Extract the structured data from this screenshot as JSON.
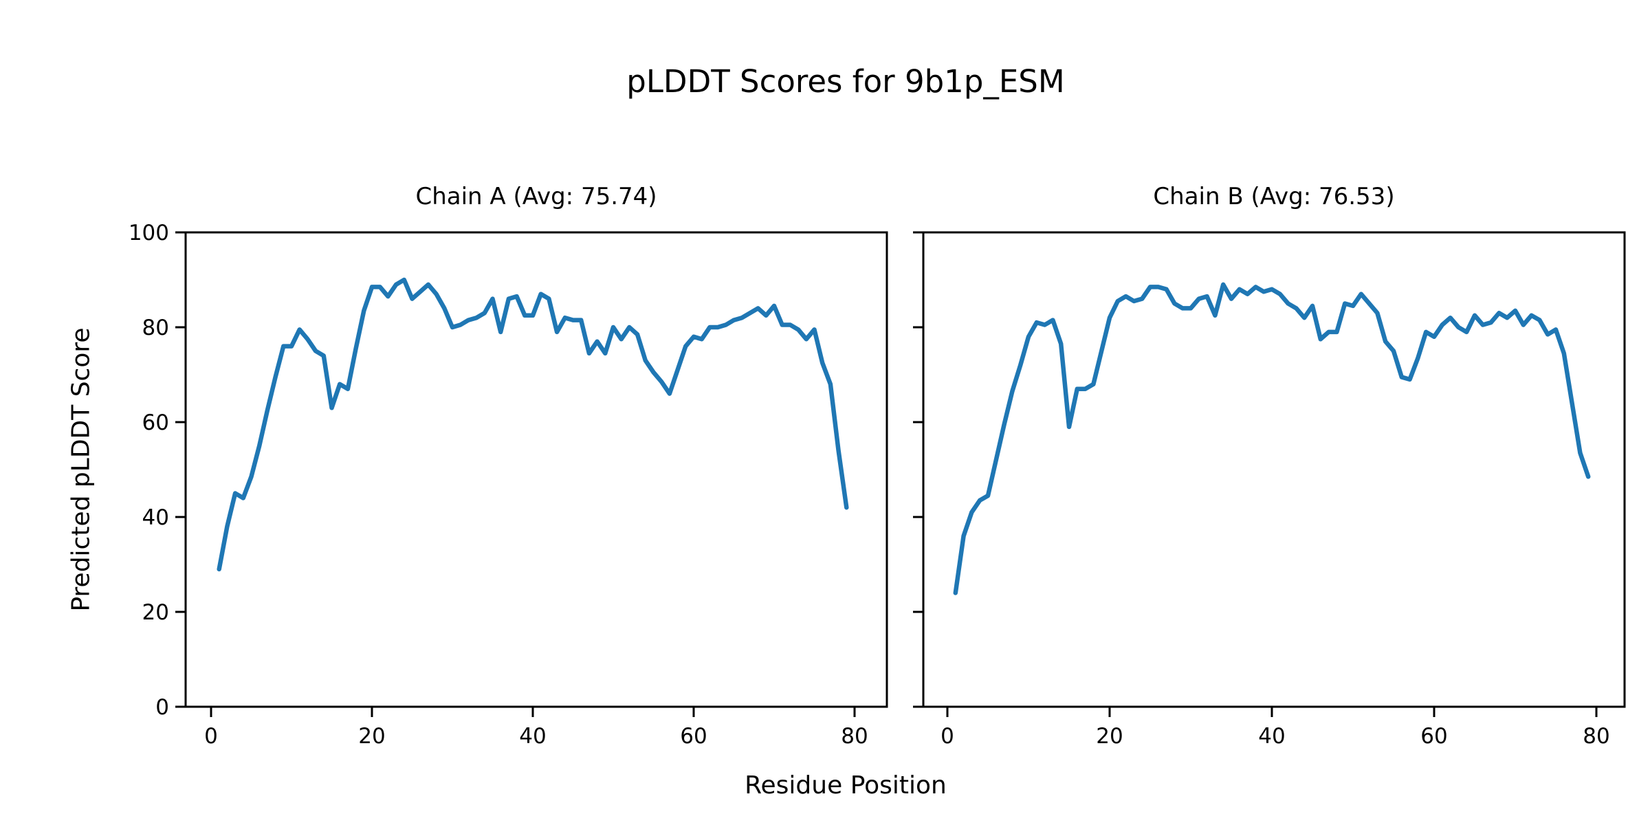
{
  "figure": {
    "title": "pLDDT Scores for 9b1p_ESM",
    "xlabel": "Residue Position",
    "ylabel": "Predicted pLDDT Score",
    "line_color": "#1f77b4",
    "background_color": "#ffffff",
    "text_color": "#000000"
  },
  "chart_data": [
    {
      "type": "line",
      "title": "Chain A (Avg: 75.74)",
      "chain": "A",
      "average": 75.74,
      "x_start": 1,
      "xticks": [
        0,
        20,
        40,
        60,
        80
      ],
      "yticks": [
        0,
        20,
        40,
        60,
        80,
        100
      ],
      "ylim": [
        0,
        100
      ],
      "xlim": [
        -2.9,
        82.9
      ],
      "grid": false,
      "yticklabels_visible": true,
      "values": [
        29,
        38,
        45,
        44,
        48.5,
        55,
        62.5,
        69.5,
        76,
        76,
        79.5,
        77.5,
        75,
        74,
        63,
        68,
        67,
        75.5,
        83.5,
        88.5,
        88.5,
        86.5,
        89,
        90,
        86,
        87.5,
        89,
        87,
        84,
        80,
        80.5,
        81.5,
        82,
        83,
        86,
        79,
        86,
        86.5,
        82.5,
        82.5,
        87,
        86,
        79,
        82,
        81.5,
        81.5,
        74.5,
        77,
        74.5,
        80,
        77.5,
        80,
        78.5,
        73,
        70.5,
        68.5,
        66,
        71,
        76,
        78,
        77.5,
        80,
        80,
        80.5,
        81.5,
        82,
        83,
        84,
        82.5,
        84.5,
        80.5,
        80.5,
        79.5,
        77.5,
        79.5,
        72.5,
        68,
        54,
        42
      ]
    },
    {
      "type": "line",
      "title": "Chain B (Avg: 76.53)",
      "chain": "B",
      "average": 76.53,
      "x_start": 1,
      "xticks": [
        0,
        20,
        40,
        60,
        80
      ],
      "yticks": [
        0,
        20,
        40,
        60,
        80,
        100
      ],
      "ylim": [
        0,
        100
      ],
      "xlim": [
        -2.9,
        82.9
      ],
      "grid": false,
      "yticklabels_visible": false,
      "values": [
        24,
        36,
        41,
        43.5,
        44.5,
        52,
        59.5,
        66.5,
        72,
        78,
        81,
        80.5,
        81.5,
        76.5,
        59,
        67,
        67,
        68,
        75,
        82,
        85.5,
        86.5,
        85.5,
        86,
        88.5,
        88.5,
        88,
        85,
        84,
        84,
        86,
        86.5,
        82.5,
        89,
        86,
        88,
        87,
        88.5,
        87.5,
        88,
        87,
        85,
        84,
        82,
        84.5,
        77.5,
        79,
        79,
        85,
        84.5,
        87,
        85,
        83,
        77,
        75,
        69.5,
        69,
        73.5,
        79,
        78,
        80.5,
        82,
        80,
        79,
        82.5,
        80.5,
        81,
        83,
        82,
        83.5,
        80.5,
        82.5,
        81.5,
        78.5,
        79.5,
        74.5,
        64,
        53.5,
        48.5
      ]
    }
  ]
}
